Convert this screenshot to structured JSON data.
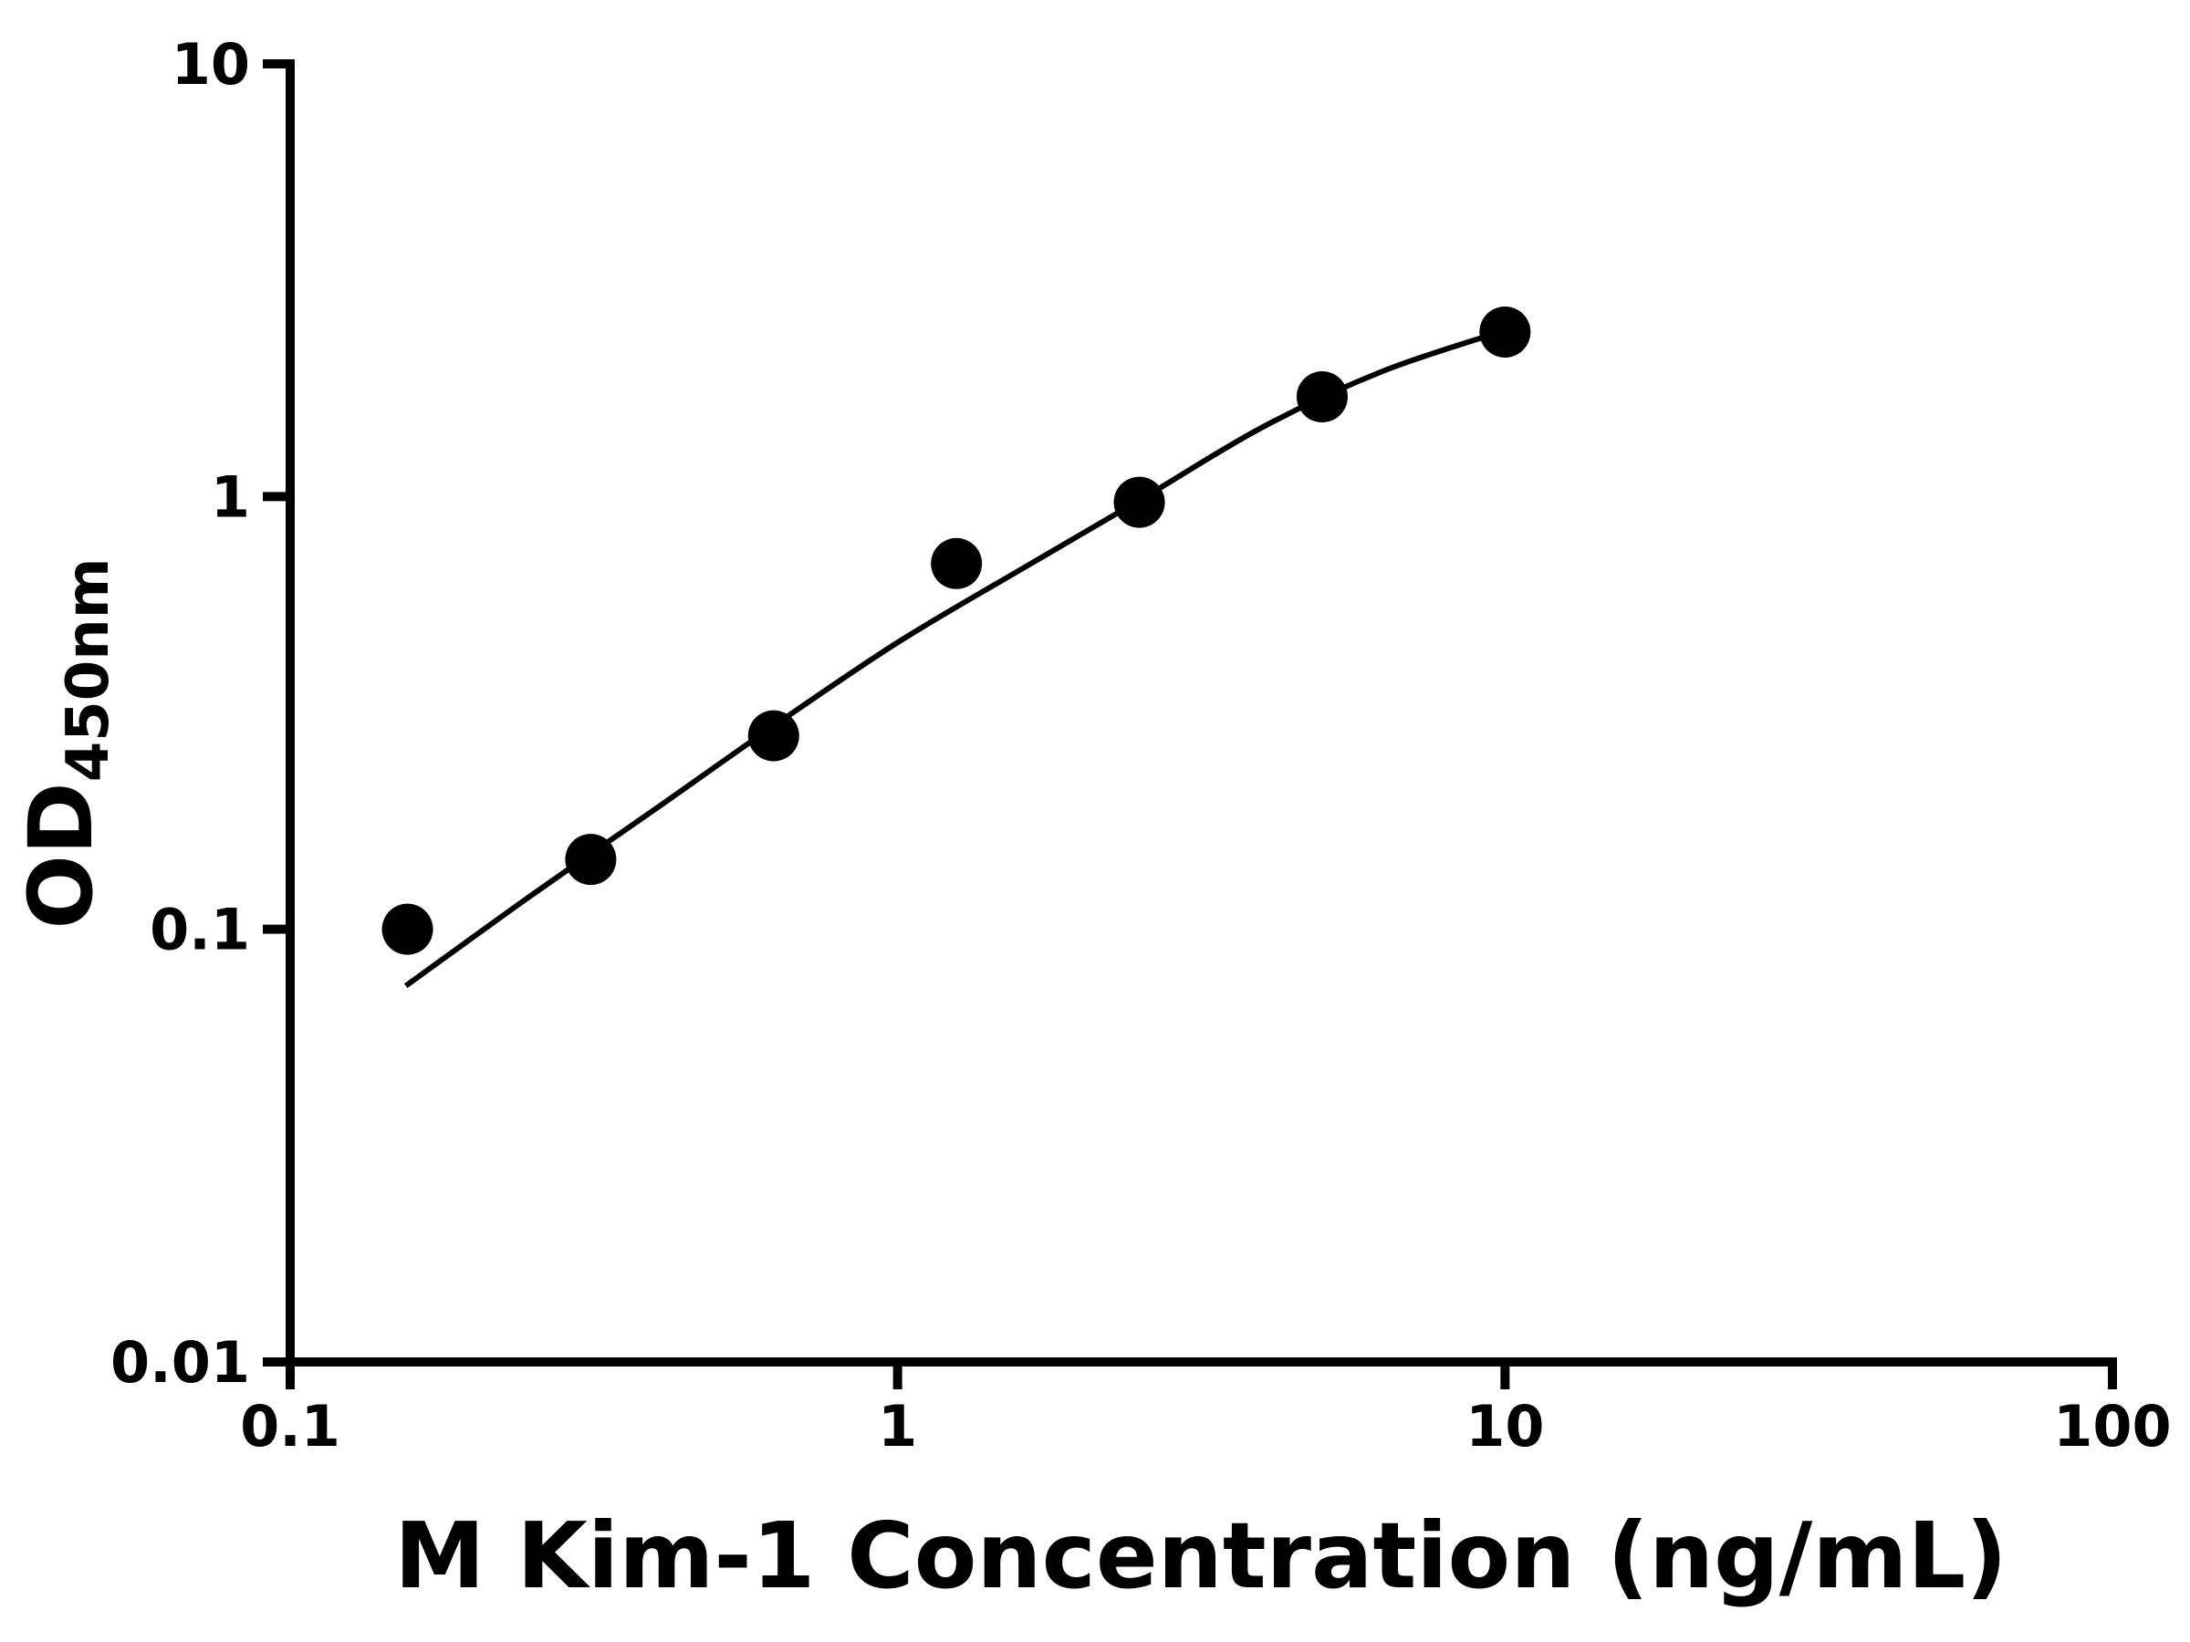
{
  "chart_data": {
    "type": "scatter",
    "title": "",
    "xlabel": "M Kim-1 Concentration (ng/mL)",
    "ylabel_main": "OD",
    "ylabel_sub": "450nm",
    "x_scale": "log",
    "y_scale": "log",
    "xlim": [
      0.1,
      100
    ],
    "ylim": [
      0.01,
      10
    ],
    "grid": false,
    "legend": "none",
    "marker_color": "#000000",
    "line_color": "#000000",
    "x_ticks": [
      {
        "value": 0.1,
        "label": "0.1"
      },
      {
        "value": 1,
        "label": "1"
      },
      {
        "value": 10,
        "label": "10"
      },
      {
        "value": 100,
        "label": "100"
      }
    ],
    "y_ticks": [
      {
        "value": 0.01,
        "label": "0.01"
      },
      {
        "value": 0.1,
        "label": "0.1"
      },
      {
        "value": 1,
        "label": "1"
      },
      {
        "value": 10,
        "label": "10"
      }
    ],
    "points": [
      {
        "x": 0.156,
        "y": 0.1
      },
      {
        "x": 0.3125,
        "y": 0.145
      },
      {
        "x": 0.625,
        "y": 0.28
      },
      {
        "x": 1.25,
        "y": 0.7
      },
      {
        "x": 2.5,
        "y": 0.97
      },
      {
        "x": 5.0,
        "y": 1.7
      },
      {
        "x": 10.0,
        "y": 2.4
      }
    ],
    "fit_curve": [
      {
        "x": 0.155,
        "y": 0.074
      },
      {
        "x": 0.25,
        "y": 0.12
      },
      {
        "x": 0.4,
        "y": 0.19
      },
      {
        "x": 0.625,
        "y": 0.295
      },
      {
        "x": 1.0,
        "y": 0.46
      },
      {
        "x": 1.6,
        "y": 0.68
      },
      {
        "x": 2.5,
        "y": 0.98
      },
      {
        "x": 4.0,
        "y": 1.45
      },
      {
        "x": 6.3,
        "y": 1.95
      },
      {
        "x": 10.0,
        "y": 2.42
      }
    ]
  }
}
